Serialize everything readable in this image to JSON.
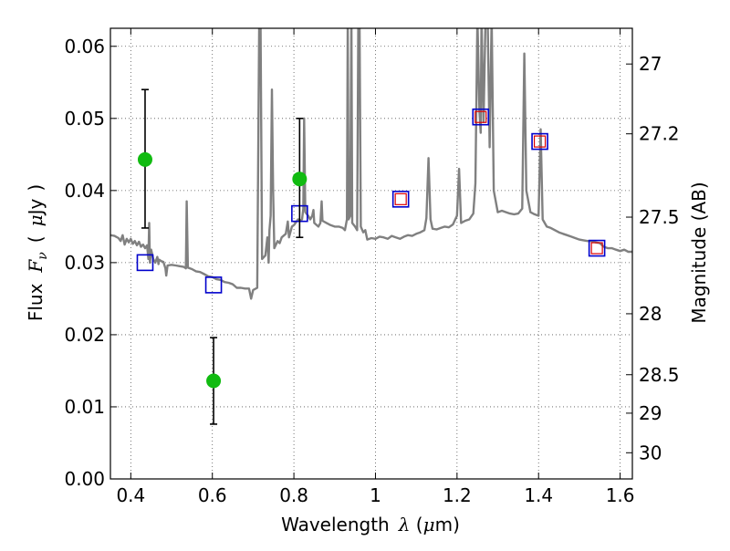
{
  "chart_data": {
    "type": "line",
    "title": "",
    "xlabel": "Wavelength",
    "xlabel_symbol": "λ",
    "xlabel_unit_open": " (",
    "xlabel_unit_mu": "μ",
    "xlabel_unit_rest": "m)",
    "ylabel": "Flux",
    "ylabel_symbol": "F",
    "ylabel_sub": "ν",
    "ylabel_unit_open": "(",
    "ylabel_unit_mu": "μ",
    "ylabel_unit_rest": "Jy",
    "ylabel_unit_close": ")",
    "y2label": "Magnitude (AB)",
    "xlim": [
      0.35,
      1.63
    ],
    "ylim": [
      0.0,
      0.0625
    ],
    "grid": true,
    "xticks": [
      {
        "value": 0.4,
        "label": "0.4"
      },
      {
        "value": 0.6,
        "label": "0.6"
      },
      {
        "value": 0.8,
        "label": "0.8"
      },
      {
        "value": 1.0,
        "label": "1"
      },
      {
        "value": 1.2,
        "label": "1.2"
      },
      {
        "value": 1.4,
        "label": "1.4"
      },
      {
        "value": 1.6,
        "label": "1.6"
      }
    ],
    "yticks": [
      {
        "value": 0.0,
        "label": "0.00"
      },
      {
        "value": 0.01,
        "label": "0.01"
      },
      {
        "value": 0.02,
        "label": "0.02"
      },
      {
        "value": 0.03,
        "label": "0.03"
      },
      {
        "value": 0.04,
        "label": "0.04"
      },
      {
        "value": 0.05,
        "label": "0.05"
      },
      {
        "value": 0.06,
        "label": "0.06"
      }
    ],
    "y2ticks": [
      {
        "value": 27,
        "label": "27"
      },
      {
        "value": 27.2,
        "label": "27.2"
      },
      {
        "value": 27.5,
        "label": "27.5"
      },
      {
        "value": 28,
        "label": "28"
      },
      {
        "value": 28.5,
        "label": "28.5"
      },
      {
        "value": 29,
        "label": "29"
      },
      {
        "value": 30,
        "label": "30"
      }
    ],
    "colors": {
      "spectrum": "#808080",
      "model_photometry": "#0000cc",
      "model_inner": "#dd0000",
      "observed": "#11bb11",
      "errorbar": "#000000",
      "grid": "#555555"
    },
    "series": [
      {
        "name": "model_spectrum",
        "kind": "line",
        "points": [
          [
            0.35,
            0.0338
          ],
          [
            0.36,
            0.0337
          ],
          [
            0.37,
            0.0334
          ],
          [
            0.375,
            0.033
          ],
          [
            0.38,
            0.0338
          ],
          [
            0.385,
            0.0325
          ],
          [
            0.39,
            0.0333
          ],
          [
            0.395,
            0.0328
          ],
          [
            0.4,
            0.0333
          ],
          [
            0.405,
            0.0326
          ],
          [
            0.41,
            0.033
          ],
          [
            0.415,
            0.0324
          ],
          [
            0.42,
            0.0329
          ],
          [
            0.425,
            0.0322
          ],
          [
            0.43,
            0.0325
          ],
          [
            0.435,
            0.032
          ],
          [
            0.44,
            0.0324
          ],
          [
            0.443,
            0.0305
          ],
          [
            0.445,
            0.0355
          ],
          [
            0.447,
            0.03
          ],
          [
            0.45,
            0.0318
          ],
          [
            0.455,
            0.0305
          ],
          [
            0.46,
            0.03
          ],
          [
            0.465,
            0.0308
          ],
          [
            0.468,
            0.0298
          ],
          [
            0.47,
            0.0304
          ],
          [
            0.475,
            0.0302
          ],
          [
            0.48,
            0.0301
          ],
          [
            0.485,
            0.0292
          ],
          [
            0.487,
            0.0282
          ],
          [
            0.49,
            0.0296
          ],
          [
            0.5,
            0.0297
          ],
          [
            0.51,
            0.0296
          ],
          [
            0.52,
            0.0295
          ],
          [
            0.53,
            0.0294
          ],
          [
            0.535,
            0.0292
          ],
          [
            0.537,
            0.0385
          ],
          [
            0.54,
            0.0293
          ],
          [
            0.55,
            0.0291
          ],
          [
            0.56,
            0.0288
          ],
          [
            0.57,
            0.0287
          ],
          [
            0.58,
            0.0284
          ],
          [
            0.59,
            0.0281
          ],
          [
            0.6,
            0.028
          ],
          [
            0.61,
            0.0277
          ],
          [
            0.62,
            0.0276
          ],
          [
            0.63,
            0.0273
          ],
          [
            0.64,
            0.0272
          ],
          [
            0.65,
            0.027
          ],
          [
            0.66,
            0.0265
          ],
          [
            0.67,
            0.0265
          ],
          [
            0.68,
            0.0264
          ],
          [
            0.69,
            0.0264
          ],
          [
            0.695,
            0.025
          ],
          [
            0.7,
            0.0262
          ],
          [
            0.71,
            0.0265
          ],
          [
            0.715,
            0.064
          ],
          [
            0.718,
            0.064
          ],
          [
            0.722,
            0.0305
          ],
          [
            0.73,
            0.031
          ],
          [
            0.735,
            0.0335
          ],
          [
            0.738,
            0.03
          ],
          [
            0.74,
            0.0345
          ],
          [
            0.743,
            0.0365
          ],
          [
            0.746,
            0.054
          ],
          [
            0.749,
            0.04
          ],
          [
            0.752,
            0.032
          ],
          [
            0.76,
            0.033
          ],
          [
            0.765,
            0.0327
          ],
          [
            0.77,
            0.0335
          ],
          [
            0.78,
            0.034
          ],
          [
            0.785,
            0.0357
          ],
          [
            0.788,
            0.0335
          ],
          [
            0.795,
            0.035
          ],
          [
            0.8,
            0.0352
          ],
          [
            0.81,
            0.036
          ],
          [
            0.815,
            0.0358
          ],
          [
            0.82,
            0.036
          ],
          [
            0.823,
            0.0375
          ],
          [
            0.825,
            0.05
          ],
          [
            0.828,
            0.037
          ],
          [
            0.835,
            0.0365
          ],
          [
            0.84,
            0.036
          ],
          [
            0.845,
            0.0365
          ],
          [
            0.848,
            0.0373
          ],
          [
            0.85,
            0.0355
          ],
          [
            0.86,
            0.035
          ],
          [
            0.865,
            0.0355
          ],
          [
            0.868,
            0.0385
          ],
          [
            0.87,
            0.0358
          ],
          [
            0.88,
            0.0355
          ],
          [
            0.89,
            0.0352
          ],
          [
            0.9,
            0.035
          ],
          [
            0.91,
            0.035
          ],
          [
            0.92,
            0.0348
          ],
          [
            0.925,
            0.0345
          ],
          [
            0.93,
            0.036
          ],
          [
            0.932,
            0.064
          ],
          [
            0.934,
            0.036
          ],
          [
            0.938,
            0.0365
          ],
          [
            0.941,
            0.064
          ],
          [
            0.943,
            0.0355
          ],
          [
            0.95,
            0.035
          ],
          [
            0.955,
            0.0345
          ],
          [
            0.958,
            0.064
          ],
          [
            0.961,
            0.064
          ],
          [
            0.964,
            0.035
          ],
          [
            0.97,
            0.0342
          ],
          [
            0.975,
            0.0345
          ],
          [
            0.98,
            0.0332
          ],
          [
            0.99,
            0.0334
          ],
          [
            1.0,
            0.0333
          ],
          [
            1.01,
            0.0336
          ],
          [
            1.02,
            0.0335
          ],
          [
            1.03,
            0.0333
          ],
          [
            1.04,
            0.0337
          ],
          [
            1.05,
            0.0335
          ],
          [
            1.06,
            0.0333
          ],
          [
            1.07,
            0.0336
          ],
          [
            1.08,
            0.0338
          ],
          [
            1.09,
            0.0337
          ],
          [
            1.1,
            0.034
          ],
          [
            1.11,
            0.0342
          ],
          [
            1.12,
            0.0345
          ],
          [
            1.125,
            0.0362
          ],
          [
            1.13,
            0.0445
          ],
          [
            1.135,
            0.036
          ],
          [
            1.14,
            0.0347
          ],
          [
            1.15,
            0.0346
          ],
          [
            1.16,
            0.0348
          ],
          [
            1.17,
            0.035
          ],
          [
            1.18,
            0.0349
          ],
          [
            1.19,
            0.0353
          ],
          [
            1.2,
            0.0365
          ],
          [
            1.205,
            0.043
          ],
          [
            1.21,
            0.0355
          ],
          [
            1.22,
            0.0358
          ],
          [
            1.23,
            0.036
          ],
          [
            1.24,
            0.0368
          ],
          [
            1.245,
            0.041
          ],
          [
            1.25,
            0.064
          ],
          [
            1.255,
            0.051
          ],
          [
            1.258,
            0.048
          ],
          [
            1.26,
            0.064
          ],
          [
            1.265,
            0.0495
          ],
          [
            1.27,
            0.064
          ],
          [
            1.275,
            0.064
          ],
          [
            1.28,
            0.046
          ],
          [
            1.285,
            0.064
          ],
          [
            1.29,
            0.04
          ],
          [
            1.3,
            0.037
          ],
          [
            1.31,
            0.0372
          ],
          [
            1.32,
            0.037
          ],
          [
            1.33,
            0.0368
          ],
          [
            1.34,
            0.0367
          ],
          [
            1.35,
            0.0368
          ],
          [
            1.36,
            0.0375
          ],
          [
            1.365,
            0.059
          ],
          [
            1.37,
            0.04
          ],
          [
            1.38,
            0.037
          ],
          [
            1.39,
            0.0367
          ],
          [
            1.4,
            0.0365
          ],
          [
            1.405,
            0.0485
          ],
          [
            1.41,
            0.036
          ],
          [
            1.42,
            0.035
          ],
          [
            1.43,
            0.0348
          ],
          [
            1.44,
            0.0345
          ],
          [
            1.45,
            0.0342
          ],
          [
            1.46,
            0.034
          ],
          [
            1.47,
            0.0338
          ],
          [
            1.48,
            0.0336
          ],
          [
            1.49,
            0.0334
          ],
          [
            1.5,
            0.0332
          ],
          [
            1.51,
            0.0331
          ],
          [
            1.52,
            0.033
          ],
          [
            1.53,
            0.033
          ],
          [
            1.54,
            0.0328
          ],
          [
            1.55,
            0.0327
          ],
          [
            1.56,
            0.0322
          ],
          [
            1.57,
            0.032
          ],
          [
            1.58,
            0.032
          ],
          [
            1.59,
            0.0318
          ],
          [
            1.6,
            0.0316
          ],
          [
            1.61,
            0.0318
          ],
          [
            1.62,
            0.0315
          ],
          [
            1.63,
            0.0315
          ]
        ]
      },
      {
        "name": "model_photometry",
        "kind": "squares",
        "points": [
          [
            0.435,
            0.03
          ],
          [
            0.603,
            0.0269
          ],
          [
            0.814,
            0.0368
          ],
          [
            1.062,
            0.0388
          ],
          [
            1.258,
            0.0502
          ],
          [
            1.403,
            0.0468
          ],
          [
            1.543,
            0.032
          ]
        ]
      },
      {
        "name": "model_photometry_inner",
        "kind": "inner-squares",
        "points": [
          [
            1.062,
            0.0388
          ],
          [
            1.258,
            0.0502
          ],
          [
            1.403,
            0.0468
          ],
          [
            1.543,
            0.032
          ]
        ]
      },
      {
        "name": "observed_photometry",
        "kind": "points",
        "points": [
          [
            0.435,
            0.0443
          ],
          [
            0.603,
            0.0136
          ],
          [
            0.814,
            0.0416
          ]
        ],
        "errors": [
          [
            0.0348,
            0.054
          ],
          [
            0.0076,
            0.0196
          ],
          [
            0.0335,
            0.05
          ]
        ]
      }
    ]
  }
}
